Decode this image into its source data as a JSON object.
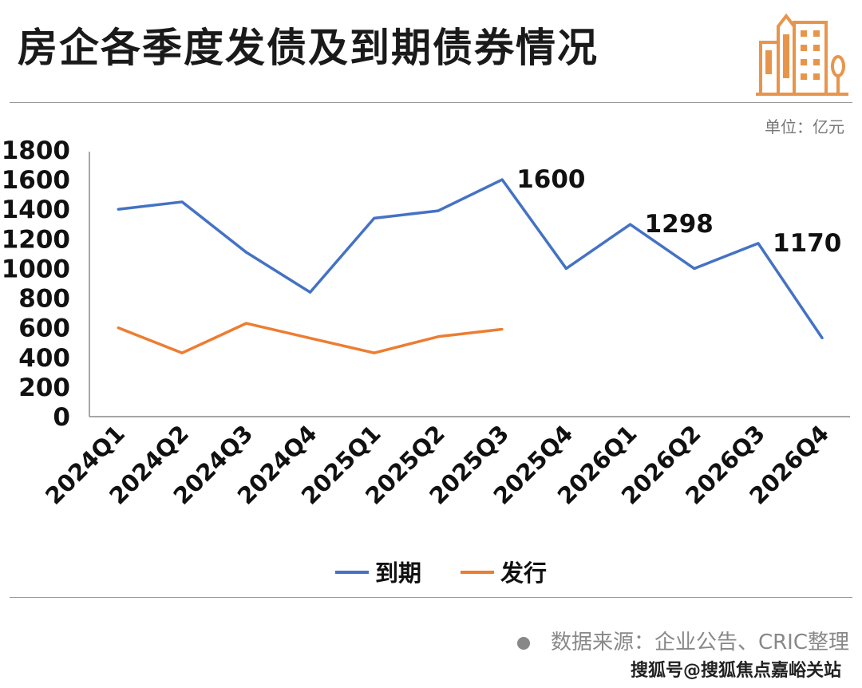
{
  "title": "房企各季度发债及到期债券情况",
  "unit": "单位：亿元",
  "source": "数据来源：企业公告、CRIC整理",
  "footer": "搜狐号@搜狐焦点嘉峪关站",
  "logo_icon": "building-icon",
  "colors": {
    "maturity": "#4472C4",
    "issuance": "#ED7D31",
    "logo": "#E8954B"
  },
  "chart_data": {
    "type": "line",
    "categories": [
      "2024Q1",
      "2024Q2",
      "2024Q3",
      "2024Q4",
      "2025Q1",
      "2025Q2",
      "2025Q3",
      "2025Q4",
      "2026Q1",
      "2026Q2",
      "2026Q3",
      "2026Q4"
    ],
    "ylim": [
      0,
      1800
    ],
    "yticks": [
      0,
      200,
      400,
      600,
      800,
      1000,
      1200,
      1400,
      1600,
      1800
    ],
    "grid": false,
    "legend_position": "bottom",
    "series": [
      {
        "name": "到期",
        "color": "#4472C4",
        "values": [
          1400,
          1450,
          1110,
          840,
          1340,
          1390,
          1600,
          1000,
          1298,
          1000,
          1170,
          530
        ],
        "labels": [
          {
            "index": 6,
            "text": "1600"
          },
          {
            "index": 8,
            "text": "1298"
          },
          {
            "index": 10,
            "text": "1170"
          }
        ]
      },
      {
        "name": "发行",
        "color": "#ED7D31",
        "values": [
          600,
          430,
          630,
          530,
          430,
          540,
          590,
          null,
          null,
          null,
          null,
          null
        ],
        "labels": []
      }
    ]
  }
}
